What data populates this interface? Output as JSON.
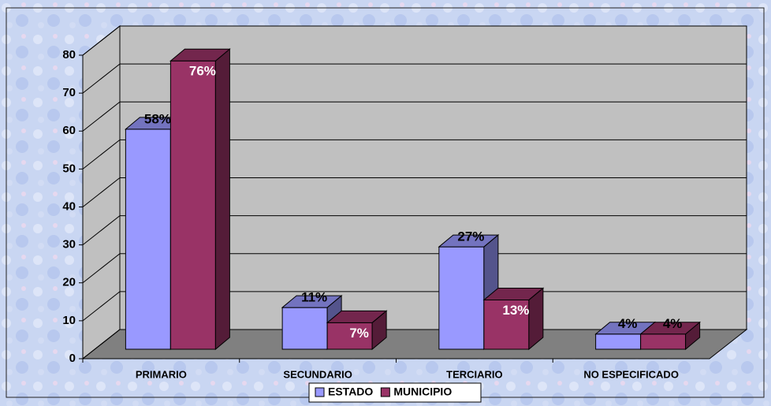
{
  "chart_data": {
    "type": "bar3d",
    "categories": [
      "PRIMARIO",
      "SECUNDARIO",
      "TERCIARIO",
      "NO ESPECIFICADO"
    ],
    "series": [
      {
        "name": "ESTADO",
        "color": "#9999ff",
        "values": [
          58,
          11,
          27,
          4
        ],
        "value_labels": [
          "58%",
          "11%",
          "27%",
          "4%"
        ]
      },
      {
        "name": "MUNICIPIO",
        "color": "#993366",
        "values": [
          76,
          7,
          13,
          4
        ],
        "value_labels": [
          "76%",
          "7%",
          "13%",
          "4%"
        ]
      }
    ],
    "ylim": [
      0,
      80
    ],
    "yticks": [
      0,
      10,
      20,
      30,
      40,
      50,
      60,
      70,
      80
    ],
    "grid": true,
    "legend": "bottom"
  }
}
